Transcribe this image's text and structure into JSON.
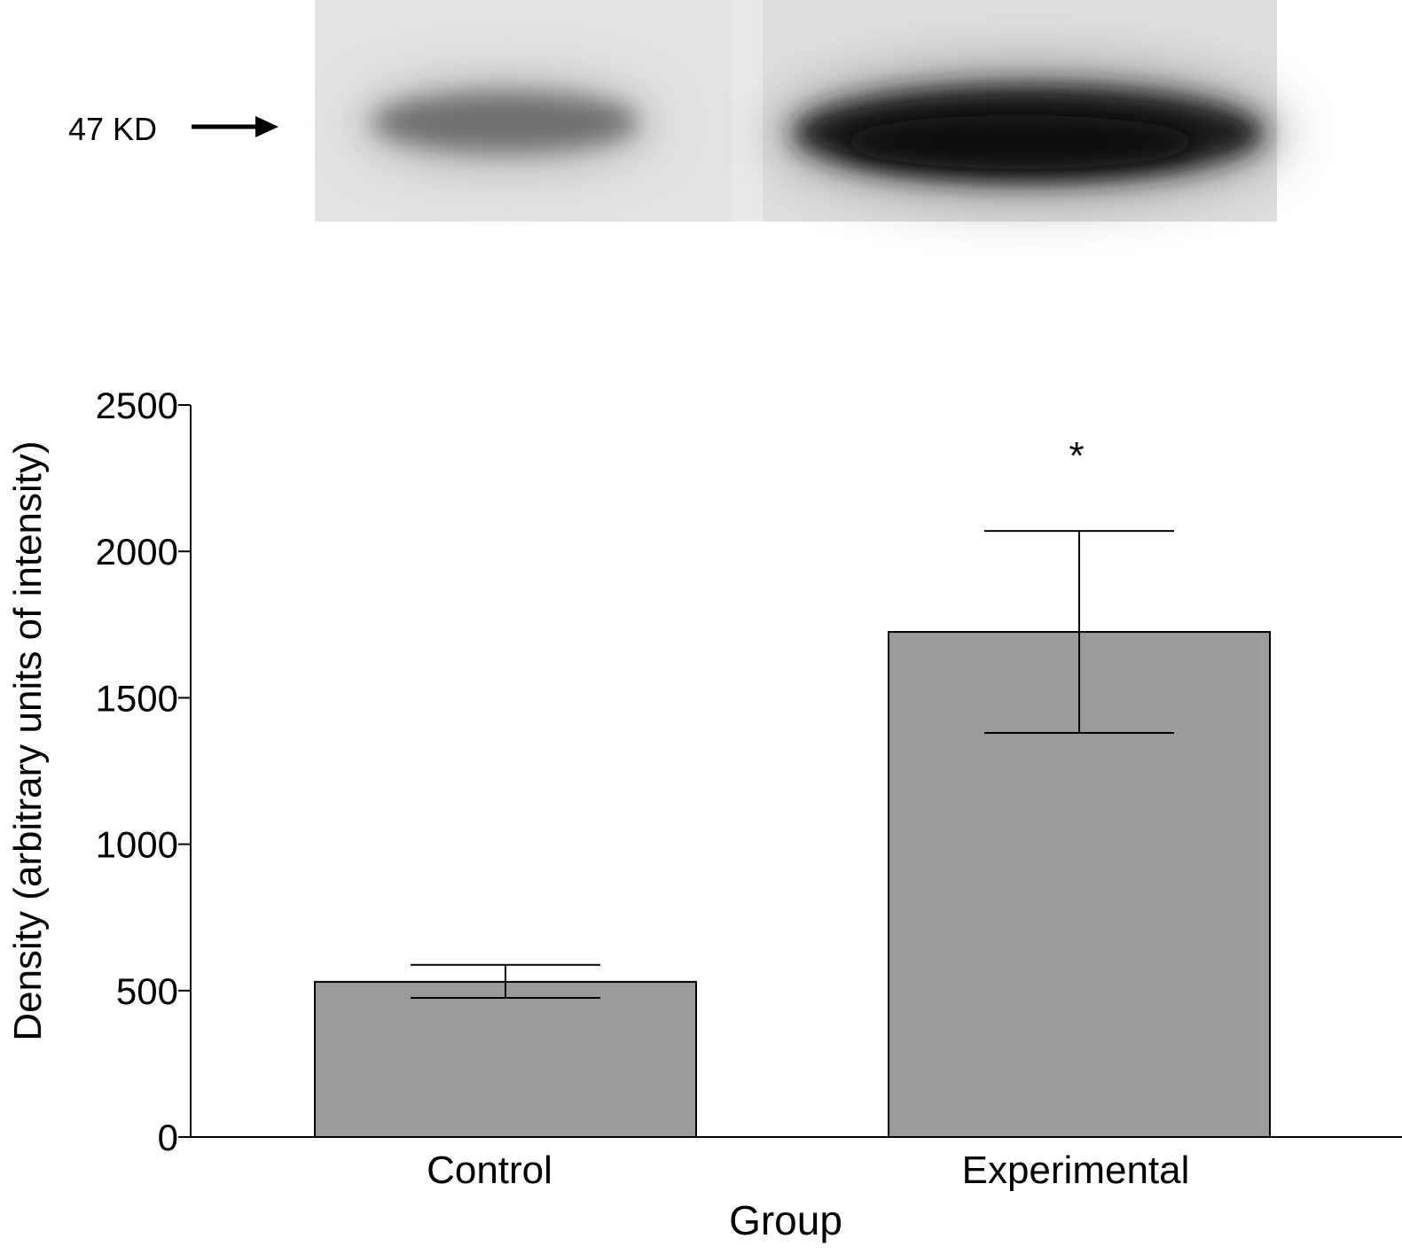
{
  "blot": {
    "marker_label": "47 KD",
    "lanes": [
      {
        "name": "Control",
        "relative_intensity": 0.55
      },
      {
        "name": "Experimental",
        "relative_intensity": 1.0
      }
    ]
  },
  "chart_data": {
    "type": "bar",
    "categories": [
      "Control",
      "Experimental"
    ],
    "values": [
      530,
      1725
    ],
    "error": [
      {
        "low": 475,
        "high": 588
      },
      {
        "low": 1380,
        "high": 2070
      }
    ],
    "significance": [
      "",
      "*"
    ],
    "xlabel": "Group",
    "ylabel": "Density (arbitrary units of intensity)",
    "ylim": [
      0,
      2500
    ],
    "yticks": [
      0,
      500,
      1000,
      1500,
      2000,
      2500
    ],
    "bar_color": "#9b9b9b",
    "grid": false
  }
}
